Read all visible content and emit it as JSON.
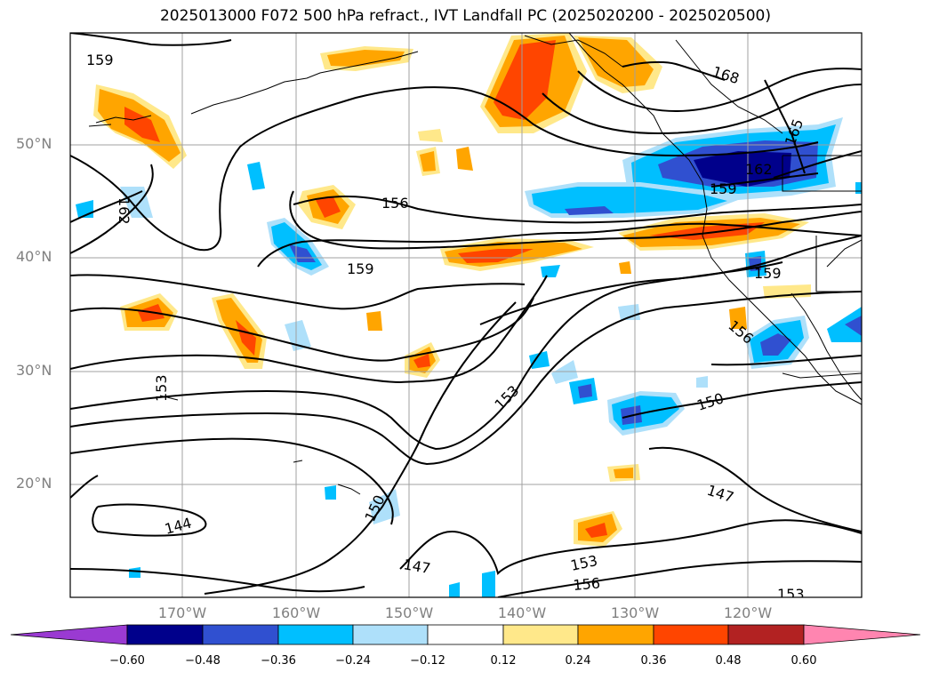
{
  "title": "2025013000 F072 500 hPa refract., IVT Landfall PC (2025020200 - 2025020500)",
  "axes": {
    "lat_labels": [
      "50°N",
      "40°N",
      "30°N",
      "20°N"
    ],
    "lon_labels": [
      "170°W",
      "160°W",
      "150°W",
      "140°W",
      "130°W",
      "120°W"
    ]
  },
  "contour_labels": [
    "159",
    "168",
    "165",
    "162",
    "159",
    "156",
    "159",
    "159",
    "162",
    "156",
    "153",
    "153",
    "150",
    "147",
    "144",
    "150",
    "147",
    "153",
    "156",
    "153"
  ],
  "colorbar": {
    "ticks": [
      "−0.60",
      "−0.48",
      "−0.36",
      "−0.24",
      "−0.12",
      "0.12",
      "0.24",
      "0.36",
      "0.48",
      "0.60"
    ],
    "colors": [
      "#9a3ad2",
      "#00008b",
      "#3050d0",
      "#00bfff",
      "#aee0fa",
      "#ffffff",
      "#ffe88a",
      "#ffa500",
      "#ff4500",
      "#b22222",
      "#ff85b0"
    ]
  }
}
